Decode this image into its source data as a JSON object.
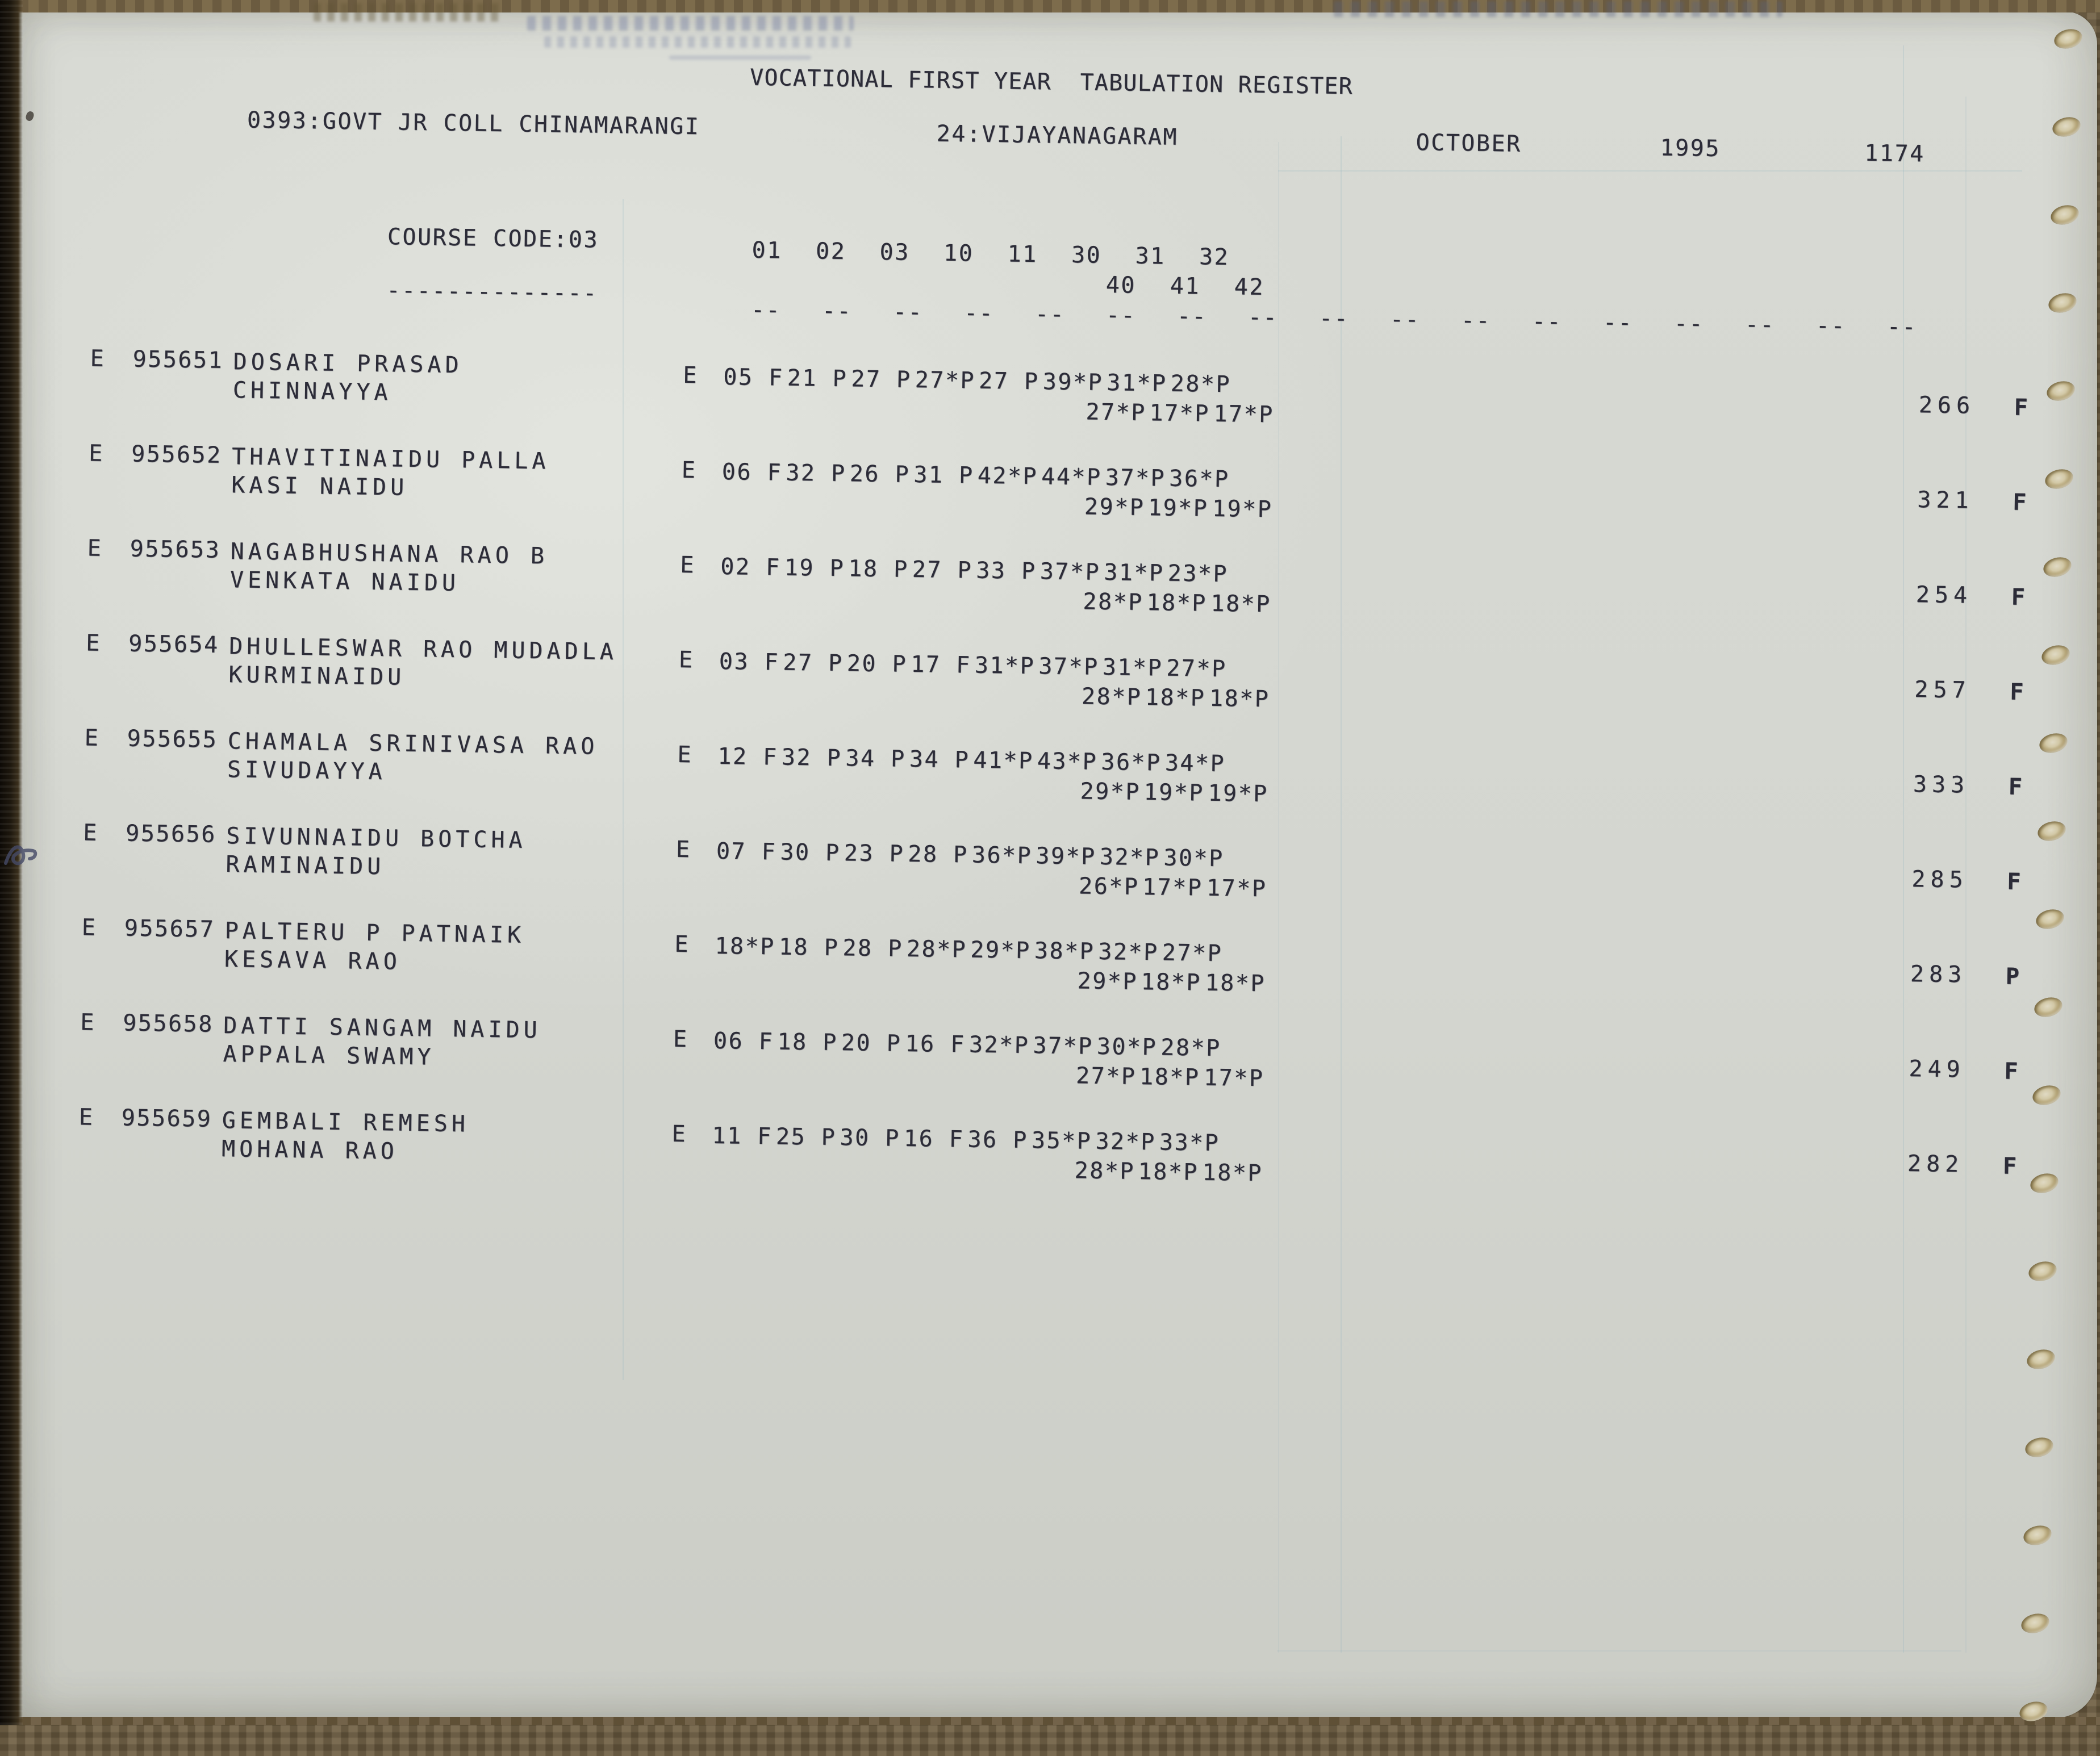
{
  "header": {
    "title": "VOCATIONAL FIRST YEAR  TABULATION REGISTER",
    "college": "0393:GOVT JR COLL CHINAMARANGI",
    "district": "24:VIJAYANAGARAM",
    "month": "OCTOBER",
    "year": "1995",
    "page_number": "1174"
  },
  "course": {
    "label": "COURSE CODE:03",
    "label_underline": "--------------",
    "subject_columns_row1": [
      "01",
      "02",
      "03",
      "10",
      "11",
      "30",
      "31",
      "32"
    ],
    "subject_columns_row2": [
      "40",
      "41",
      "42"
    ],
    "dash_mark": "--",
    "dash_count": 17
  },
  "students": [
    {
      "tick": "E",
      "regno": "955651",
      "name1": "DOSARI PRASAD",
      "name2": "CHINNAYYA",
      "medium": "E",
      "marks1": [
        "05 F",
        "21 P",
        "27 P",
        "27*P",
        "27 P",
        "39*P",
        "31*P",
        "28*P"
      ],
      "marks2": [
        "27*P",
        "17*P",
        "17*P"
      ],
      "total": "266",
      "result": "F"
    },
    {
      "tick": "E",
      "regno": "955652",
      "name1": "THAVITINAIDU PALLA",
      "name2": "KASI NAIDU",
      "medium": "E",
      "marks1": [
        "06 F",
        "32 P",
        "26 P",
        "31 P",
        "42*P",
        "44*P",
        "37*P",
        "36*P"
      ],
      "marks2": [
        "29*P",
        "19*P",
        "19*P"
      ],
      "total": "321",
      "result": "F"
    },
    {
      "tick": "E",
      "regno": "955653",
      "name1": "NAGABHUSHANA RAO B",
      "name2": "VENKATA NAIDU",
      "medium": "E",
      "marks1": [
        "02 F",
        "19 P",
        "18 P",
        "27 P",
        "33 P",
        "37*P",
        "31*P",
        "23*P"
      ],
      "marks2": [
        "28*P",
        "18*P",
        "18*P"
      ],
      "total": "254",
      "result": "F"
    },
    {
      "tick": "E",
      "regno": "955654",
      "name1": "DHULLESWAR RAO MUDADLA",
      "name2": "KURMINAIDU",
      "medium": "E",
      "marks1": [
        "03 F",
        "27 P",
        "20 P",
        "17 F",
        "31*P",
        "37*P",
        "31*P",
        "27*P"
      ],
      "marks2": [
        "28*P",
        "18*P",
        "18*P"
      ],
      "total": "257",
      "result": "F"
    },
    {
      "tick": "E",
      "regno": "955655",
      "name1": "CHAMALA SRINIVASA RAO",
      "name2": "SIVUDAYYA",
      "medium": "E",
      "marks1": [
        "12 F",
        "32 P",
        "34 P",
        "34 P",
        "41*P",
        "43*P",
        "36*P",
        "34*P"
      ],
      "marks2": [
        "29*P",
        "19*P",
        "19*P"
      ],
      "total": "333",
      "result": "F"
    },
    {
      "tick": "E",
      "regno": "955656",
      "name1": "SIVUNNAIDU BOTCHA",
      "name2": "RAMINAIDU",
      "medium": "E",
      "marks1": [
        "07 F",
        "30 P",
        "23 P",
        "28 P",
        "36*P",
        "39*P",
        "32*P",
        "30*P"
      ],
      "marks2": [
        "26*P",
        "17*P",
        "17*P"
      ],
      "total": "285",
      "result": "F"
    },
    {
      "tick": "E",
      "regno": "955657",
      "name1": "PALTERU P PATNAIK",
      "name2": "KESAVA RAO",
      "medium": "E",
      "marks1": [
        "18*P",
        "18 P",
        "28 P",
        "28*P",
        "29*P",
        "38*P",
        "32*P",
        "27*P"
      ],
      "marks2": [
        "29*P",
        "18*P",
        "18*P"
      ],
      "total": "283",
      "result": "P"
    },
    {
      "tick": "E",
      "regno": "955658",
      "name1": "DATTI SANGAM NAIDU",
      "name2": "APPALA SWAMY",
      "medium": "E",
      "marks1": [
        "06 F",
        "18 P",
        "20 P",
        "16 F",
        "32*P",
        "37*P",
        "30*P",
        "28*P"
      ],
      "marks2": [
        "27*P",
        "18*P",
        "17*P"
      ],
      "total": "249",
      "result": "F"
    },
    {
      "tick": "E",
      "regno": "955659",
      "name1": "GEMBALI REMESH",
      "name2": "MOHANA RAO",
      "medium": "E",
      "marks1": [
        "11 F",
        "25 P",
        "30 P",
        "16 F",
        "36 P",
        "35*P",
        "32*P",
        "33*P"
      ],
      "marks2": [
        "28*P",
        "18*P",
        "18*P"
      ],
      "total": "282",
      "result": "F"
    }
  ],
  "colors": {
    "ink": "#2c2c38",
    "paper": "#d6d8d2",
    "cover": "#6e5e42",
    "rule_blue": "#8fb0bd"
  }
}
